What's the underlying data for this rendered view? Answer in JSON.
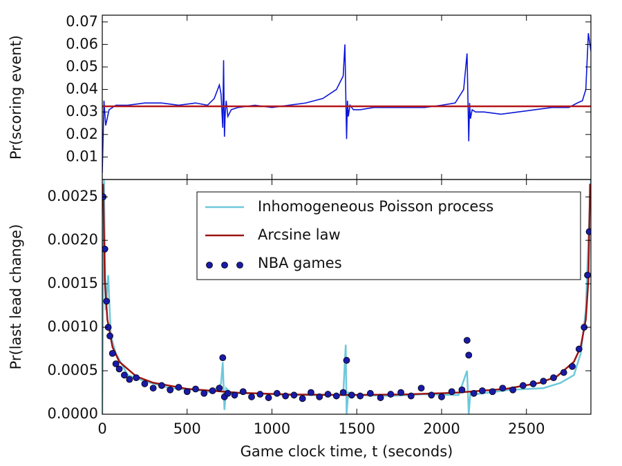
{
  "chart_data": [
    {
      "type": "line",
      "ylabel": "Pr(scoring event)",
      "xlim": [
        0,
        2880
      ],
      "xticks": [
        0,
        500,
        1000,
        1500,
        2000,
        2500
      ],
      "ylim": [
        0,
        0.073
      ],
      "yticks": [
        0.01,
        0.02,
        0.03,
        0.04,
        0.05,
        0.06,
        0.07
      ],
      "series": [
        {
          "color": "#0b16d6",
          "x": [
            0,
            10,
            20,
            40,
            80,
            150,
            250,
            350,
            450,
            550,
            620,
            660,
            690,
            700,
            710,
            715,
            720,
            725,
            730,
            740,
            760,
            800,
            900,
            1000,
            1100,
            1200,
            1300,
            1380,
            1420,
            1430,
            1440,
            1445,
            1450,
            1460,
            1480,
            1520,
            1600,
            1700,
            1800,
            1900,
            2000,
            2080,
            2130,
            2150,
            2160,
            2165,
            2170,
            2180,
            2200,
            2250,
            2350,
            2450,
            2550,
            2650,
            2750,
            2800,
            2830,
            2850,
            2865,
            2880
          ],
          "values": [
            0.003,
            0.035,
            0.024,
            0.031,
            0.033,
            0.033,
            0.034,
            0.034,
            0.033,
            0.034,
            0.033,
            0.036,
            0.042,
            0.038,
            0.023,
            0.053,
            0.019,
            0.03,
            0.035,
            0.028,
            0.031,
            0.032,
            0.033,
            0.032,
            0.033,
            0.034,
            0.036,
            0.04,
            0.046,
            0.06,
            0.018,
            0.035,
            0.028,
            0.033,
            0.031,
            0.031,
            0.032,
            0.032,
            0.032,
            0.032,
            0.033,
            0.034,
            0.04,
            0.056,
            0.017,
            0.034,
            0.027,
            0.031,
            0.03,
            0.03,
            0.029,
            0.03,
            0.031,
            0.032,
            0.032,
            0.034,
            0.035,
            0.04,
            0.065,
            0.057
          ]
        },
        {
          "color": "#b5151b",
          "x": [
            0,
            2880
          ],
          "values": [
            0.0325,
            0.0325
          ]
        }
      ]
    },
    {
      "type": "line",
      "xlabel": "Game clock time, t (seconds)",
      "ylabel": "Pr(last lead change)",
      "xlim": [
        0,
        2880
      ],
      "xticks": [
        0,
        500,
        1000,
        1500,
        2000,
        2500
      ],
      "ylim": [
        0,
        0.0027
      ],
      "yticks": [
        {
          "value": 0,
          "label": "0.0000"
        },
        {
          "value": 0.0005,
          "label": "0.0005"
        },
        {
          "value": 0.001,
          "label": "0.0010"
        },
        {
          "value": 0.0015,
          "label": "0.0015"
        },
        {
          "value": 0.002,
          "label": "0.0020"
        },
        {
          "value": 0.0025,
          "label": "0.0025"
        }
      ],
      "legend": "upper right",
      "series": [
        {
          "name": "Inhomogeneous Poisson process",
          "color": "#6ec8dc",
          "x": [
            0,
            10,
            20,
            35,
            50,
            80,
            150,
            250,
            400,
            550,
            650,
            700,
            710,
            720,
            730,
            760,
            900,
            1100,
            1300,
            1420,
            1435,
            1440,
            1450,
            1500,
            1700,
            1900,
            2100,
            2150,
            2160,
            2170,
            2200,
            2400,
            2600,
            2700,
            2780,
            2820,
            2850,
            2865,
            2880
          ],
          "values": [
            0,
            0.0027,
            0.0012,
            0.0016,
            0.0009,
            0.0007,
            0.00045,
            0.00038,
            0.0003,
            0.00028,
            0.00025,
            0.00035,
            0.0006,
            5e-05,
            0.0003,
            0.00024,
            0.00024,
            0.00022,
            0.00022,
            0.00022,
            0.0008,
            0.0,
            0.00025,
            0.00022,
            0.00021,
            0.00023,
            0.00022,
            0.0005,
            0.0,
            0.00025,
            0.00023,
            0.00028,
            0.0003,
            0.00036,
            0.00045,
            0.0007,
            0.0012,
            0.002,
            0.0027
          ]
        },
        {
          "name": "Arcsine law",
          "color": "#9b1414",
          "x": [
            5,
            15,
            30,
            60,
            100,
            200,
            300,
            500,
            800,
            1100,
            1440,
            1780,
            2080,
            2380,
            2580,
            2680,
            2780,
            2820,
            2850,
            2865,
            2875
          ],
          "values": [
            0.00265,
            0.00154,
            0.00109,
            0.000774,
            0.000604,
            0.000435,
            0.000362,
            0.000292,
            0.000247,
            0.000227,
            0.000221,
            0.000227,
            0.000247,
            0.000292,
            0.000362,
            0.000435,
            0.000604,
            0.000774,
            0.00109,
            0.00154,
            0.00265
          ]
        },
        {
          "name": "NBA games",
          "type": "scatter",
          "color": "#1a1aa8",
          "x": [
            5,
            15,
            25,
            35,
            45,
            60,
            80,
            100,
            130,
            160,
            200,
            250,
            300,
            350,
            400,
            450,
            500,
            550,
            600,
            650,
            690,
            710,
            720,
            740,
            780,
            830,
            880,
            930,
            980,
            1030,
            1080,
            1130,
            1180,
            1230,
            1280,
            1330,
            1380,
            1420,
            1440,
            1470,
            1520,
            1580,
            1640,
            1700,
            1760,
            1820,
            1880,
            1940,
            2000,
            2060,
            2120,
            2150,
            2160,
            2190,
            2240,
            2300,
            2360,
            2420,
            2480,
            2540,
            2600,
            2660,
            2720,
            2770,
            2810,
            2840,
            2860,
            2870
          ],
          "values": [
            0.0025,
            0.0019,
            0.0013,
            0.001,
            0.0009,
            0.0007,
            0.00058,
            0.00052,
            0.00045,
            0.0004,
            0.00042,
            0.00035,
            0.0003,
            0.00033,
            0.00028,
            0.00031,
            0.00026,
            0.00029,
            0.00024,
            0.00027,
            0.0003,
            0.00065,
            0.0002,
            0.00024,
            0.00022,
            0.00026,
            0.0002,
            0.00023,
            0.00019,
            0.00024,
            0.00021,
            0.00022,
            0.00018,
            0.00025,
            0.0002,
            0.00023,
            0.00021,
            0.00025,
            0.00062,
            0.00022,
            0.00021,
            0.00024,
            0.00019,
            0.00023,
            0.00025,
            0.00021,
            0.0003,
            0.00022,
            0.0002,
            0.00026,
            0.00028,
            0.00085,
            0.00068,
            0.00024,
            0.00027,
            0.00026,
            0.0003,
            0.00028,
            0.00033,
            0.00035,
            0.00038,
            0.00042,
            0.00048,
            0.00055,
            0.00075,
            0.001,
            0.0016,
            0.0021
          ]
        }
      ]
    }
  ]
}
